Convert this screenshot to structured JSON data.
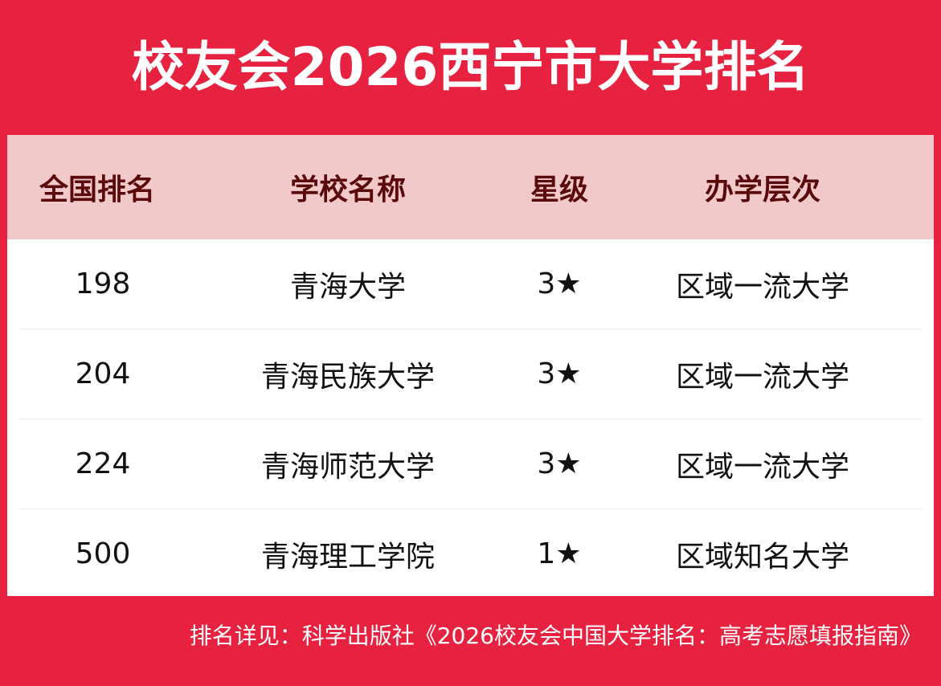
{
  "header": {
    "title": "校友会2026西宁市大学排名"
  },
  "table": {
    "columns": [
      "全国排名",
      "学校名称",
      "星级",
      "办学层次"
    ],
    "rows": [
      [
        "198",
        "青海大学",
        "3★",
        "区域一流大学"
      ],
      [
        "204",
        "青海民族大学",
        "3★",
        "区域一流大学"
      ],
      [
        "224",
        "青海师范大学",
        "3★",
        "区域一流大学"
      ],
      [
        "500",
        "青海理工学院",
        "1★",
        "区域知名大学"
      ]
    ]
  },
  "footer": {
    "note": "排名详见：科学出版社《2026校友会中国大学排名：高考志愿填报指南》"
  }
}
